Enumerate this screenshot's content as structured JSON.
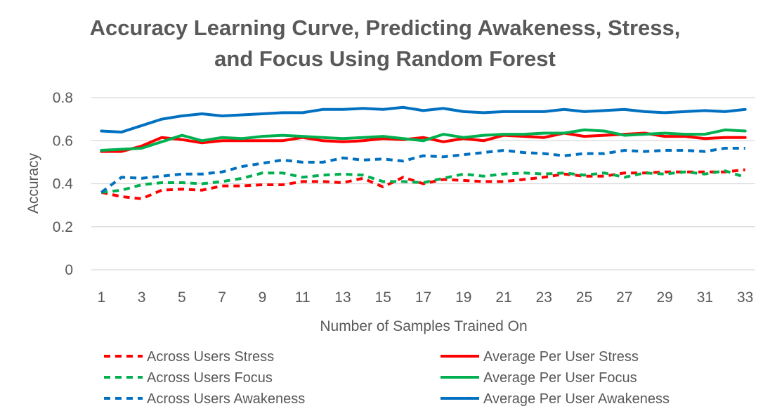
{
  "chart_data": {
    "type": "line",
    "title_lines": [
      "Accuracy Learning Curve, Predicting Awakeness, Stress,",
      "and Focus Using Random Forest"
    ],
    "xlabel": "Number of Samples Trained On",
    "ylabel": "Accuracy",
    "x": [
      1,
      2,
      3,
      4,
      5,
      6,
      7,
      8,
      9,
      10,
      11,
      12,
      13,
      14,
      15,
      16,
      17,
      18,
      19,
      20,
      21,
      22,
      23,
      24,
      25,
      26,
      27,
      28,
      29,
      30,
      31,
      32,
      33
    ],
    "x_tick_labels": [
      "1",
      "3",
      "5",
      "7",
      "9",
      "11",
      "13",
      "15",
      "17",
      "19",
      "21",
      "23",
      "25",
      "27",
      "29",
      "31",
      "33"
    ],
    "y_ticks": [
      "0",
      "0.2",
      "0.4",
      "0.6",
      "0.8"
    ],
    "ylim": [
      0,
      0.8
    ],
    "grid": true,
    "legend_position": "bottom",
    "series": [
      {
        "name": "Across Users Stress",
        "color": "#ff0000",
        "dash": true,
        "values": [
          0.36,
          0.34,
          0.33,
          0.37,
          0.375,
          0.37,
          0.39,
          0.39,
          0.395,
          0.395,
          0.41,
          0.41,
          0.405,
          0.425,
          0.385,
          0.43,
          0.4,
          0.42,
          0.415,
          0.41,
          0.41,
          0.42,
          0.43,
          0.445,
          0.435,
          0.435,
          0.45,
          0.45,
          0.455,
          0.455,
          0.455,
          0.455,
          0.465
        ]
      },
      {
        "name": "Average Per User Stress",
        "color": "#ff0000",
        "dash": false,
        "values": [
          0.55,
          0.55,
          0.575,
          0.615,
          0.605,
          0.59,
          0.6,
          0.6,
          0.6,
          0.6,
          0.615,
          0.6,
          0.595,
          0.6,
          0.61,
          0.605,
          0.615,
          0.595,
          0.61,
          0.6,
          0.625,
          0.62,
          0.615,
          0.635,
          0.62,
          0.625,
          0.63,
          0.635,
          0.62,
          0.62,
          0.61,
          0.615,
          0.615
        ]
      },
      {
        "name": "Across Users Focus",
        "color": "#00b050",
        "dash": true,
        "values": [
          0.36,
          0.37,
          0.395,
          0.405,
          0.405,
          0.4,
          0.41,
          0.425,
          0.45,
          0.45,
          0.43,
          0.44,
          0.445,
          0.44,
          0.41,
          0.41,
          0.405,
          0.425,
          0.445,
          0.435,
          0.445,
          0.45,
          0.445,
          0.45,
          0.44,
          0.45,
          0.43,
          0.45,
          0.445,
          0.455,
          0.445,
          0.46,
          0.43
        ]
      },
      {
        "name": "Average Per User Focus",
        "color": "#00b050",
        "dash": false,
        "values": [
          0.555,
          0.56,
          0.565,
          0.595,
          0.625,
          0.6,
          0.615,
          0.61,
          0.62,
          0.625,
          0.62,
          0.615,
          0.61,
          0.615,
          0.62,
          0.61,
          0.6,
          0.63,
          0.615,
          0.625,
          0.63,
          0.63,
          0.635,
          0.635,
          0.65,
          0.645,
          0.625,
          0.63,
          0.635,
          0.63,
          0.63,
          0.65,
          0.645
        ]
      },
      {
        "name": "Across Users Awakeness",
        "color": "#0070c0",
        "dash": true,
        "values": [
          0.36,
          0.43,
          0.425,
          0.435,
          0.445,
          0.445,
          0.455,
          0.48,
          0.495,
          0.51,
          0.5,
          0.5,
          0.52,
          0.51,
          0.515,
          0.505,
          0.53,
          0.525,
          0.535,
          0.545,
          0.555,
          0.545,
          0.54,
          0.53,
          0.54,
          0.54,
          0.555,
          0.55,
          0.555,
          0.555,
          0.55,
          0.565,
          0.565
        ]
      },
      {
        "name": "Average Per User Awakeness",
        "color": "#0070c0",
        "dash": false,
        "values": [
          0.645,
          0.64,
          0.67,
          0.7,
          0.715,
          0.725,
          0.715,
          0.72,
          0.725,
          0.73,
          0.73,
          0.745,
          0.745,
          0.75,
          0.745,
          0.755,
          0.74,
          0.75,
          0.735,
          0.73,
          0.735,
          0.735,
          0.735,
          0.745,
          0.735,
          0.74,
          0.745,
          0.735,
          0.73,
          0.735,
          0.74,
          0.735,
          0.745
        ]
      }
    ]
  }
}
